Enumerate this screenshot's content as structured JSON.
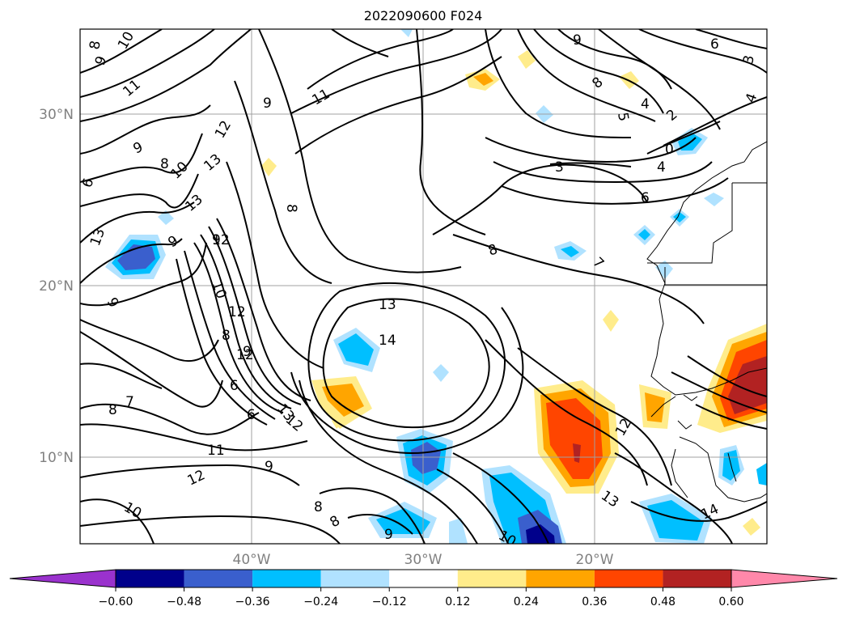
{
  "title": "2022090600 F024",
  "map": {
    "lat_labels": [
      "30°N",
      "20°N",
      "10°N"
    ],
    "lon_labels": [
      "40°W",
      "30°W",
      "20°W"
    ],
    "contour_labels": [
      "10",
      "9",
      "8",
      "11",
      "9",
      "8",
      "9",
      "12",
      "13",
      "10",
      "9",
      "6",
      "13",
      "9",
      "12",
      "13",
      "9",
      "12",
      "10",
      "12",
      "13",
      "8",
      "9",
      "6",
      "7",
      "8",
      "6",
      "12",
      "11",
      "12",
      "9",
      "10",
      "8",
      "8",
      "9",
      "8",
      "10",
      "11",
      "13",
      "14",
      "8",
      "7",
      "9",
      "8",
      "5",
      "4",
      "3",
      "2",
      "0",
      "6",
      "4",
      "6",
      "4",
      "3",
      "12",
      "13",
      "14"
    ],
    "grid": true
  },
  "colorbar": {
    "ticks": [
      "−0.60",
      "−0.48",
      "−0.36",
      "−0.24",
      "−0.12",
      "0.12",
      "0.24",
      "0.36",
      "0.48",
      "0.60"
    ],
    "colors": [
      "#9a32cd",
      "#00008b",
      "#3a5fcd",
      "#00bfff",
      "#b0e2ff",
      "#ffffff",
      "#ffec8b",
      "#ffa500",
      "#ff4500",
      "#b22222",
      "#ff88aa"
    ]
  }
}
